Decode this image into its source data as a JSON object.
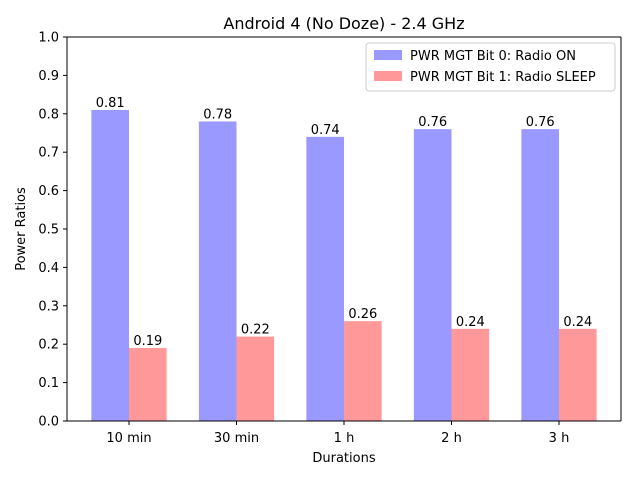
{
  "chart_data": {
    "type": "bar",
    "title": "Android 4 (No Doze) - 2.4 GHz",
    "xlabel": "Durations",
    "ylabel": "Power Ratios",
    "categories": [
      "10 min",
      "30 min",
      "1 h",
      "2 h",
      "3 h"
    ],
    "ylim": [
      0,
      1.0
    ],
    "yticks": [
      "0.0",
      "0.1",
      "0.2",
      "0.3",
      "0.4",
      "0.5",
      "0.6",
      "0.7",
      "0.8",
      "0.9",
      "1.0"
    ],
    "grid": false,
    "legend_position": "top-right",
    "series": [
      {
        "name": "PWR MGT Bit 0: Radio ON",
        "color": "#9999ff",
        "values": [
          0.81,
          0.78,
          0.74,
          0.76,
          0.76
        ],
        "labels": [
          "0.81",
          "0.78",
          "0.74",
          "0.76",
          "0.76"
        ]
      },
      {
        "name": "PWR MGT Bit 1: Radio SLEEP",
        "color": "#ff9999",
        "values": [
          0.19,
          0.22,
          0.26,
          0.24,
          0.24
        ],
        "labels": [
          "0.19",
          "0.22",
          "0.26",
          "0.24",
          "0.24"
        ]
      }
    ]
  }
}
